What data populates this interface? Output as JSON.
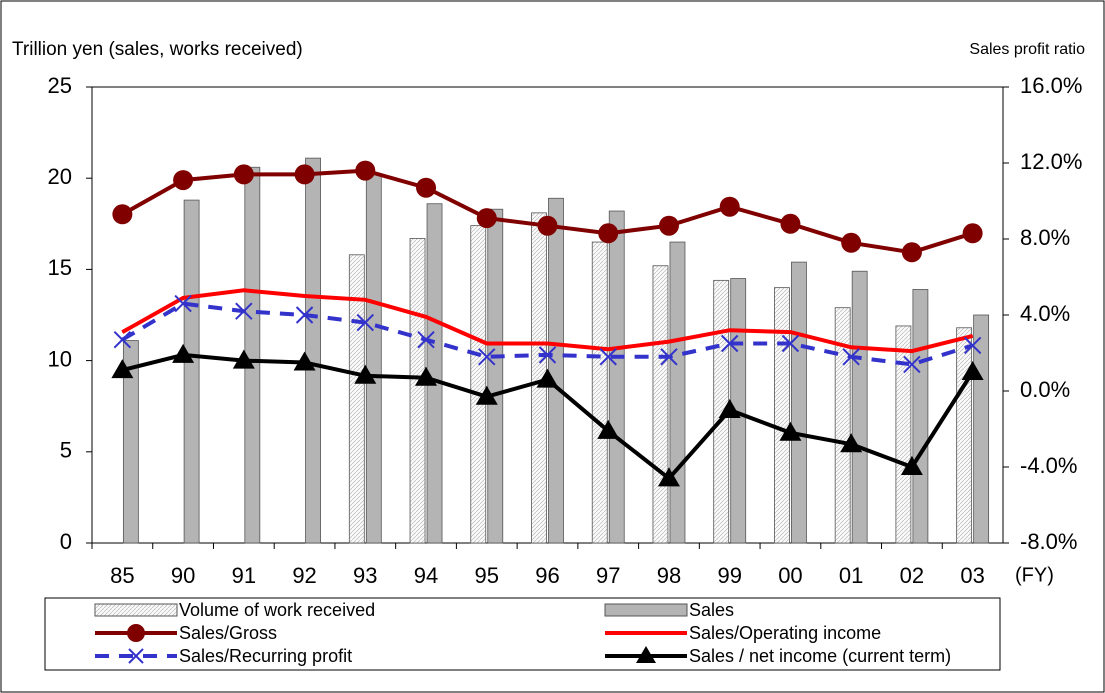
{
  "chart_data": {
    "type": "bar-line",
    "y_label": "Trillion yen (sales, works received)",
    "y2_label": "Sales profit ratio",
    "x_unit": "(FY)",
    "categories": [
      "85",
      "90",
      "91",
      "92",
      "93",
      "94",
      "95",
      "96",
      "97",
      "98",
      "99",
      "00",
      "01",
      "02",
      "03"
    ],
    "ylim": [
      0,
      25
    ],
    "yticks": [
      0,
      5,
      10,
      15,
      20,
      25
    ],
    "y2lim": [
      -8,
      16
    ],
    "y2ticks": [
      {
        "value": -8,
        "label": "-8.0%"
      },
      {
        "value": -4,
        "label": "-4.0%"
      },
      {
        "value": 0,
        "label": "0.0%"
      },
      {
        "value": 4,
        "label": "4.0%"
      },
      {
        "value": 8,
        "label": "8.0%"
      },
      {
        "value": 12,
        "label": "12.0%"
      },
      {
        "value": 16,
        "label": "16.0%"
      }
    ],
    "series": [
      {
        "name": "Volume of work received",
        "kind": "bar",
        "color": "#f4f4f4",
        "values": [
          null,
          null,
          null,
          null,
          15.8,
          16.7,
          17.4,
          18.1,
          16.5,
          15.2,
          14.4,
          14.0,
          12.9,
          11.9,
          11.8
        ]
      },
      {
        "name": "Sales",
        "kind": "bar",
        "color": "#b4b4b4",
        "values": [
          11.1,
          18.8,
          20.6,
          21.1,
          20.2,
          18.6,
          18.3,
          18.9,
          18.2,
          16.5,
          14.5,
          15.4,
          14.9,
          13.9,
          12.5
        ]
      },
      {
        "name": "Sales/Gross",
        "kind": "line",
        "marker": "circle",
        "axis": "y2",
        "color": "#800000",
        "values": [
          9.3,
          11.1,
          11.4,
          11.4,
          11.6,
          10.7,
          9.1,
          8.7,
          8.3,
          8.7,
          9.7,
          8.8,
          7.8,
          7.3,
          8.3
        ]
      },
      {
        "name": "Sales/Operating income",
        "kind": "line",
        "marker": "none",
        "axis": "y2",
        "color": "#ff0000",
        "values": [
          3.1,
          4.9,
          5.3,
          5.0,
          4.8,
          3.9,
          2.5,
          2.5,
          2.2,
          2.6,
          3.2,
          3.1,
          2.3,
          2.1,
          2.9
        ]
      },
      {
        "name": "Sales/Recurring profit",
        "kind": "line",
        "marker": "x",
        "dashed": true,
        "axis": "y2",
        "color": "#3333cc",
        "values": [
          2.7,
          4.6,
          4.2,
          4.0,
          3.6,
          2.7,
          1.8,
          1.9,
          1.8,
          1.8,
          2.5,
          2.5,
          1.8,
          1.4,
          2.4
        ]
      },
      {
        "name": "Sales / net income (current term)",
        "kind": "line",
        "marker": "triangle",
        "axis": "y2",
        "color": "#000000",
        "values": [
          1.1,
          1.9,
          1.6,
          1.5,
          0.8,
          0.7,
          -0.3,
          0.6,
          -2.1,
          -4.6,
          -1.0,
          -2.2,
          -2.8,
          -4.0,
          1.0
        ]
      }
    ]
  }
}
